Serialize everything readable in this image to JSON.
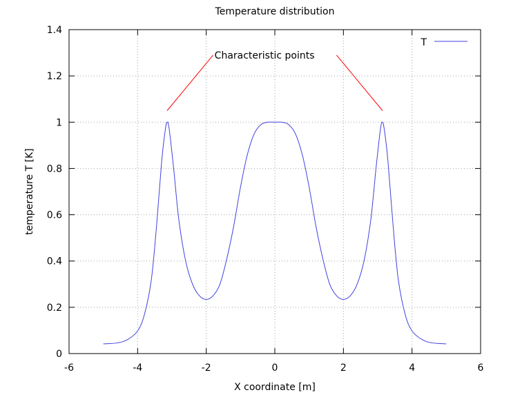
{
  "chart_data": {
    "type": "line",
    "title": "Temperature distribution",
    "xlabel": "X coordinate [m]",
    "ylabel": "temperature T [K]",
    "xlim": [
      -6,
      6
    ],
    "ylim": [
      0,
      1.4
    ],
    "xticks": [
      "-6",
      "-4",
      "-2",
      "0",
      "2",
      "4",
      "6"
    ],
    "yticks": [
      "0",
      "0.2",
      "0.4",
      "0.6",
      "0.8",
      "1",
      "1.2",
      "1.4"
    ],
    "grid": true,
    "legend_position": "top-right",
    "series": [
      {
        "name": "T",
        "color": "#4040e0",
        "x": [
          -5.0,
          -4.6,
          -4.3,
          -4.0,
          -3.8,
          -3.6,
          -3.45,
          -3.3,
          -3.2,
          -3.14,
          -3.08,
          -2.95,
          -2.8,
          -2.6,
          -2.4,
          -2.2,
          -2.0,
          -1.8,
          -1.6,
          -1.4,
          -1.2,
          -1.0,
          -0.8,
          -0.6,
          -0.4,
          -0.2,
          0.0,
          0.2,
          0.4,
          0.6,
          0.8,
          1.0,
          1.2,
          1.4,
          1.6,
          1.8,
          2.0,
          2.2,
          2.4,
          2.6,
          2.8,
          2.95,
          3.08,
          3.14,
          3.2,
          3.3,
          3.45,
          3.6,
          3.8,
          4.0,
          4.3,
          4.6,
          5.0
        ],
        "y": [
          0.042,
          0.046,
          0.06,
          0.098,
          0.17,
          0.32,
          0.55,
          0.83,
          0.96,
          1.0,
          0.97,
          0.8,
          0.58,
          0.4,
          0.3,
          0.25,
          0.234,
          0.25,
          0.3,
          0.41,
          0.55,
          0.72,
          0.86,
          0.95,
          0.99,
          1.0,
          1.0,
          1.0,
          0.99,
          0.95,
          0.86,
          0.72,
          0.55,
          0.41,
          0.3,
          0.25,
          0.234,
          0.25,
          0.3,
          0.4,
          0.58,
          0.8,
          0.97,
          1.0,
          0.96,
          0.83,
          0.55,
          0.32,
          0.17,
          0.098,
          0.06,
          0.046,
          0.042
        ]
      }
    ],
    "annotations": [
      {
        "text": "Characteristic points",
        "x": -0.3,
        "y": 1.29,
        "arrows": [
          {
            "from": [
              -1.8,
              1.29
            ],
            "to": [
              -3.14,
              1.05
            ]
          },
          {
            "from": [
              1.8,
              1.29
            ],
            "to": [
              3.14,
              1.05
            ]
          }
        ],
        "arrow_color": "#ff0000"
      }
    ]
  }
}
